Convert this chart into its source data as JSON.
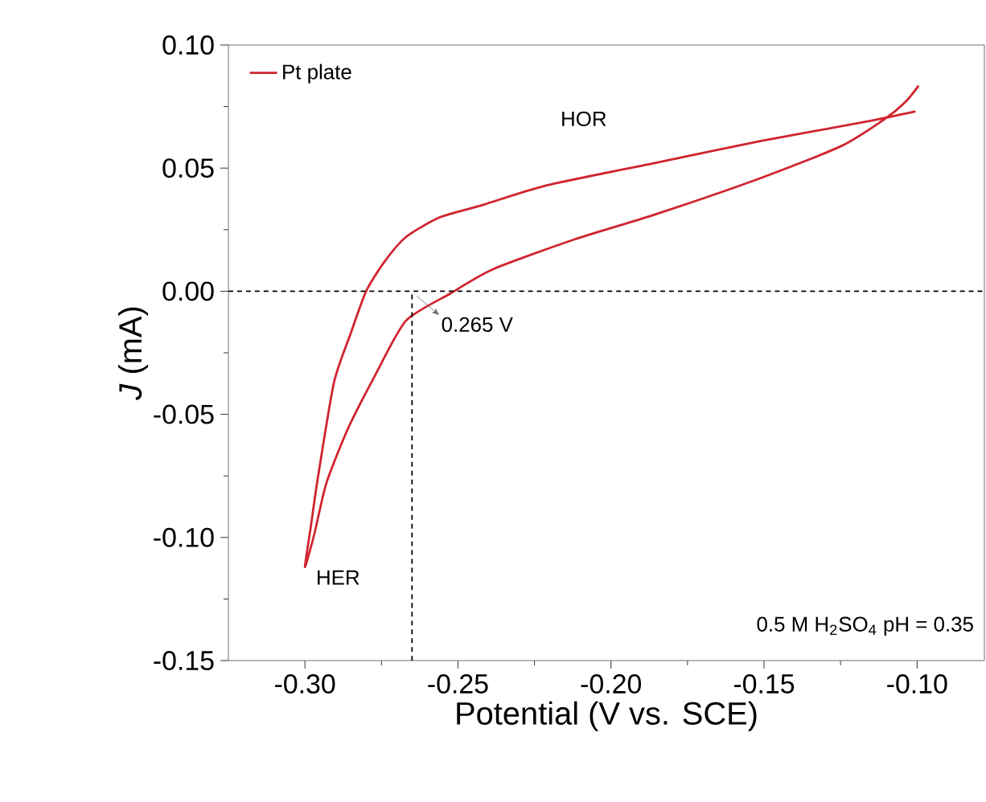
{
  "chart_data": {
    "type": "line",
    "xlabel": "Potential (V vs. SCE)",
    "ylabel": "*J* (mA)",
    "xlim": [
      -0.325,
      -0.078
    ],
    "ylim": [
      -0.15,
      0.1
    ],
    "xticks": [
      {
        "value": -0.3,
        "label": "-0.30"
      },
      {
        "value": -0.25,
        "label": "-0.25"
      },
      {
        "value": -0.2,
        "label": "-0.20"
      },
      {
        "value": -0.15,
        "label": "-0.15"
      },
      {
        "value": -0.1,
        "label": "-0.10"
      }
    ],
    "yticks": [
      {
        "value": -0.15,
        "label": "-0.15"
      },
      {
        "value": -0.1,
        "label": "-0.10"
      },
      {
        "value": -0.05,
        "label": "-0.05"
      },
      {
        "value": 0,
        "label": "0.00"
      },
      {
        "value": 0.05,
        "label": "0.05"
      },
      {
        "value": 0.1,
        "label": "0.10"
      }
    ],
    "legend": "top left",
    "grid": false,
    "marker": "none",
    "line_style": "solid",
    "series": [
      {
        "name": "Pt plate",
        "color": "#d0242f",
        "x": [
          -0.1005,
          -0.116,
          -0.151,
          -0.186,
          -0.221,
          -0.242,
          -0.256,
          -0.267,
          -0.274,
          -0.28,
          -0.285,
          -0.2905,
          -0.2958,
          -0.298,
          -0.3,
          -0.297,
          -0.293,
          -0.286,
          -0.277,
          -0.267,
          -0.2526,
          -0.2384,
          -0.212,
          -0.186,
          -0.151,
          -0.1247,
          -0.1105,
          -0.1037,
          -0.0995
        ],
        "values": [
          0.073,
          0.069,
          0.061,
          0.052,
          0.043,
          0.035,
          0.03,
          0.022,
          0.012,
          0,
          -0.017,
          -0.037,
          -0.076,
          -0.095,
          -0.112,
          -0.099,
          -0.078,
          -0.056,
          -0.034,
          -0.012,
          -0.001,
          0.009,
          0.021,
          0.031,
          0.046,
          0.059,
          0.07,
          0.077,
          0.0835
        ]
      },
      {
        "type": "line",
        "color": "#000000",
        "line_style": "dashed",
        "x": [
          -0.265,
          -0.265
        ],
        "values": [
          -0.15,
          0
        ]
      }
    ],
    "ref_lines": [
      {
        "axis": "y",
        "value": 0,
        "color": "#000000",
        "line_style": "dashed"
      }
    ],
    "annotations": [
      {
        "text": "0.265 V",
        "x": -0.265,
        "y": 0
      },
      "HOR",
      "HER",
      "0.5 M H$_{2}$SO$_{4}$ pH = 0.35"
    ]
  }
}
